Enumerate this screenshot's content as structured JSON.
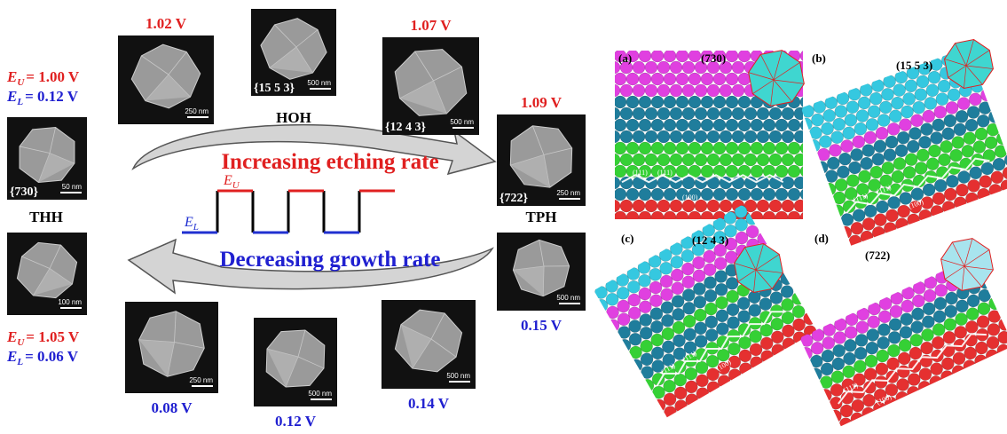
{
  "left_labels": {
    "upper": [
      {
        "symbol": "E",
        "subscript": "U",
        "value": "= 1.00 V"
      },
      {
        "symbol": "E",
        "subscript": "L",
        "value": "= 0.12 V"
      }
    ],
    "lower": [
      {
        "symbol": "E",
        "subscript": "U",
        "value": "= 1.05 V"
      },
      {
        "symbol": "E",
        "subscript": "L",
        "value": "= 0.06 V"
      }
    ]
  },
  "sem_images": [
    {
      "facet": "{730}",
      "scale": "50 nm"
    },
    {
      "scale": "100 nm"
    },
    {
      "potential": "1.02 V",
      "scale": "250 nm"
    },
    {
      "facet": "{15 5 3}",
      "scale": "500 nm"
    },
    {
      "potential": "1.07 V",
      "facet": "{12 4 3}",
      "scale": "500 nm"
    },
    {
      "potential": "1.09 V",
      "facet": "{722}",
      "scale": "250 nm"
    },
    {
      "potential": "0.15 V",
      "scale": "500 nm"
    },
    {
      "potential": "0.08 V",
      "scale": "250 nm"
    },
    {
      "potential": "0.12 V",
      "scale": "500 nm"
    },
    {
      "potential": "0.14 V",
      "scale": "500 nm"
    }
  ],
  "shape_names": [
    "THH",
    "HOH",
    "TPH"
  ],
  "arrows": {
    "upper": "Increasing etching rate",
    "lower": "Decreasing growth rate"
  },
  "waveform": {
    "upper": {
      "symbol": "E",
      "subscript": "U"
    },
    "lower": {
      "symbol": "E",
      "subscript": "L"
    }
  },
  "panels": [
    {
      "letter": "(a)",
      "plane": "(730)",
      "facet_labels": [
        "(111)",
        "(111)",
        "(100)"
      ]
    },
    {
      "letter": "(b)",
      "plane": "(15 5 3)",
      "facet_labels": [
        "(111)",
        "(111)",
        "(100)"
      ]
    },
    {
      "letter": "(c)",
      "plane": "(12 4 3)",
      "facet_labels": [
        "(111)",
        "(111)",
        "(100)"
      ]
    },
    {
      "letter": "(d)",
      "plane": "(722)",
      "facet_labels": [
        "(111)",
        "(100)"
      ]
    }
  ]
}
